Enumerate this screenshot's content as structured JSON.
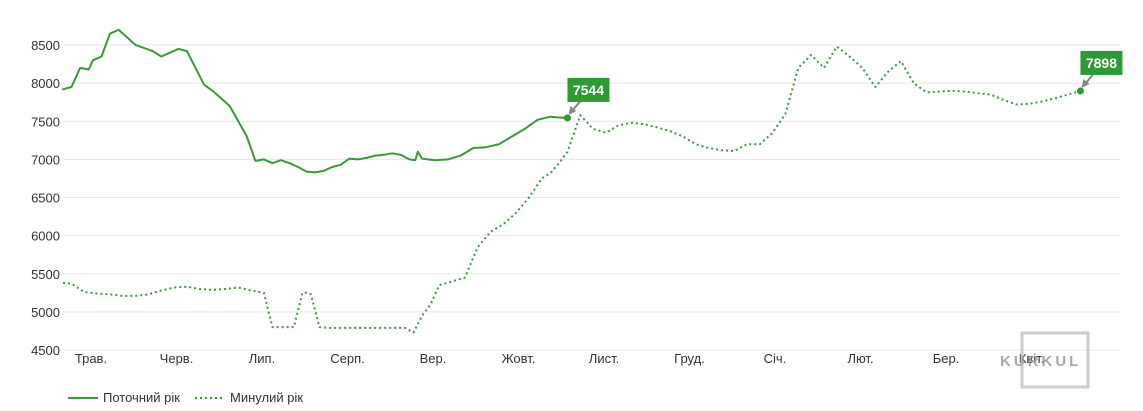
{
  "chart_data": {
    "type": "line",
    "y_ticks": [
      4500,
      5000,
      5500,
      6000,
      6500,
      7000,
      7500,
      8000,
      8500
    ],
    "ylim": [
      4500,
      8750
    ],
    "x_ticks": [
      "Трав.",
      "Черв.",
      "Лип.",
      "Серп.",
      "Вер.",
      "Жовт.",
      "Лист.",
      "Груд.",
      "Січ.",
      "Лют.",
      "Бер.",
      "Квіт."
    ],
    "xlim": [
      0,
      12.6
    ],
    "grid": "horizontal",
    "legend_position": "bottom-left",
    "colors": {
      "line": "#3a9a3a",
      "callout": "#2e9a34",
      "arrow": "#888888",
      "grid": "#e6e6e6"
    },
    "series": [
      {
        "name": "Поточний рік",
        "style": "solid",
        "x": [
          0,
          0.1,
          0.2,
          0.3,
          0.35,
          0.45,
          0.55,
          0.65,
          0.75,
          0.85,
          0.95,
          1.05,
          1.15,
          1.25,
          1.35,
          1.45,
          1.55,
          1.65,
          1.75,
          1.85,
          1.95,
          2.05,
          2.15,
          2.25,
          2.35,
          2.45,
          2.55,
          2.65,
          2.75,
          2.85,
          2.95,
          3.05,
          3.15,
          3.25,
          3.35,
          3.45,
          3.55,
          3.65,
          3.75,
          3.85,
          3.95,
          4.05,
          4.12,
          4.15,
          4.2,
          4.35,
          4.5,
          4.65,
          4.8,
          4.95,
          5.1,
          5.25,
          5.4,
          5.55,
          5.7,
          5.8,
          5.9
        ],
        "y": [
          7920,
          7950,
          8200,
          8180,
          8300,
          8350,
          8650,
          8700,
          8600,
          8500,
          8460,
          8420,
          8350,
          8400,
          8450,
          8420,
          8200,
          7980,
          7900,
          7800,
          7700,
          7500,
          7300,
          6980,
          7000,
          6950,
          6990,
          6950,
          6900,
          6840,
          6830,
          6850,
          6900,
          6930,
          7010,
          7000,
          7020,
          7050,
          7060,
          7080,
          7060,
          7000,
          6990,
          7100,
          7010,
          6990,
          7000,
          7050,
          7150,
          7160,
          7200,
          7300,
          7400,
          7520,
          7560,
          7550,
          7544
        ]
      },
      {
        "name": "Минулий рік",
        "style": "dotted",
        "x": [
          0,
          0.1,
          0.25,
          0.4,
          0.55,
          0.7,
          0.85,
          1,
          1.15,
          1.3,
          1.45,
          1.6,
          1.75,
          1.9,
          2.05,
          2.2,
          2.35,
          2.45,
          2.55,
          2.7,
          2.8,
          2.85,
          2.9,
          3,
          3.1,
          3.25,
          3.4,
          3.55,
          3.7,
          3.85,
          4,
          4.1,
          4.2,
          4.3,
          4.4,
          4.55,
          4.7,
          4.85,
          5,
          5.15,
          5.3,
          5.45,
          5.6,
          5.7,
          5.8,
          5.9,
          6.05,
          6.2,
          6.35,
          6.5,
          6.65,
          6.8,
          6.95,
          7.1,
          7.25,
          7.4,
          7.55,
          7.7,
          7.85,
          8,
          8.15,
          8.3,
          8.45,
          8.6,
          8.75,
          8.9,
          9.05,
          9.2,
          9.35,
          9.5,
          9.65,
          9.8,
          9.95,
          10.1,
          10.25,
          10.4,
          10.55,
          10.7,
          10.85,
          11,
          11.15,
          11.3,
          11.45,
          11.6,
          11.75,
          11.9
        ],
        "y": [
          5380,
          5370,
          5260,
          5240,
          5230,
          5210,
          5210,
          5230,
          5280,
          5320,
          5330,
          5300,
          5290,
          5300,
          5320,
          5280,
          5250,
          4800,
          4800,
          4800,
          5250,
          5250,
          5230,
          4800,
          4790,
          4790,
          4790,
          4790,
          4790,
          4790,
          4790,
          4730,
          4950,
          5100,
          5350,
          5400,
          5450,
          5850,
          6050,
          6150,
          6300,
          6500,
          6750,
          6820,
          6950,
          7100,
          7580,
          7400,
          7350,
          7450,
          7480,
          7460,
          7420,
          7370,
          7300,
          7200,
          7150,
          7120,
          7110,
          7200,
          7200,
          7350,
          7600,
          8200,
          8370,
          8200,
          8480,
          8350,
          8200,
          7950,
          8150,
          8290,
          8000,
          7880,
          7890,
          7900,
          7890,
          7870,
          7850,
          7780,
          7720,
          7730,
          7760,
          7800,
          7850,
          7898
        ]
      }
    ],
    "annotations": [
      {
        "label": "7544",
        "series": 0,
        "x": 5.9,
        "y": 7544
      },
      {
        "label": "7898",
        "series": 1,
        "x": 11.9,
        "y": 7898
      }
    ]
  },
  "watermark": {
    "text": "KURKUL"
  }
}
